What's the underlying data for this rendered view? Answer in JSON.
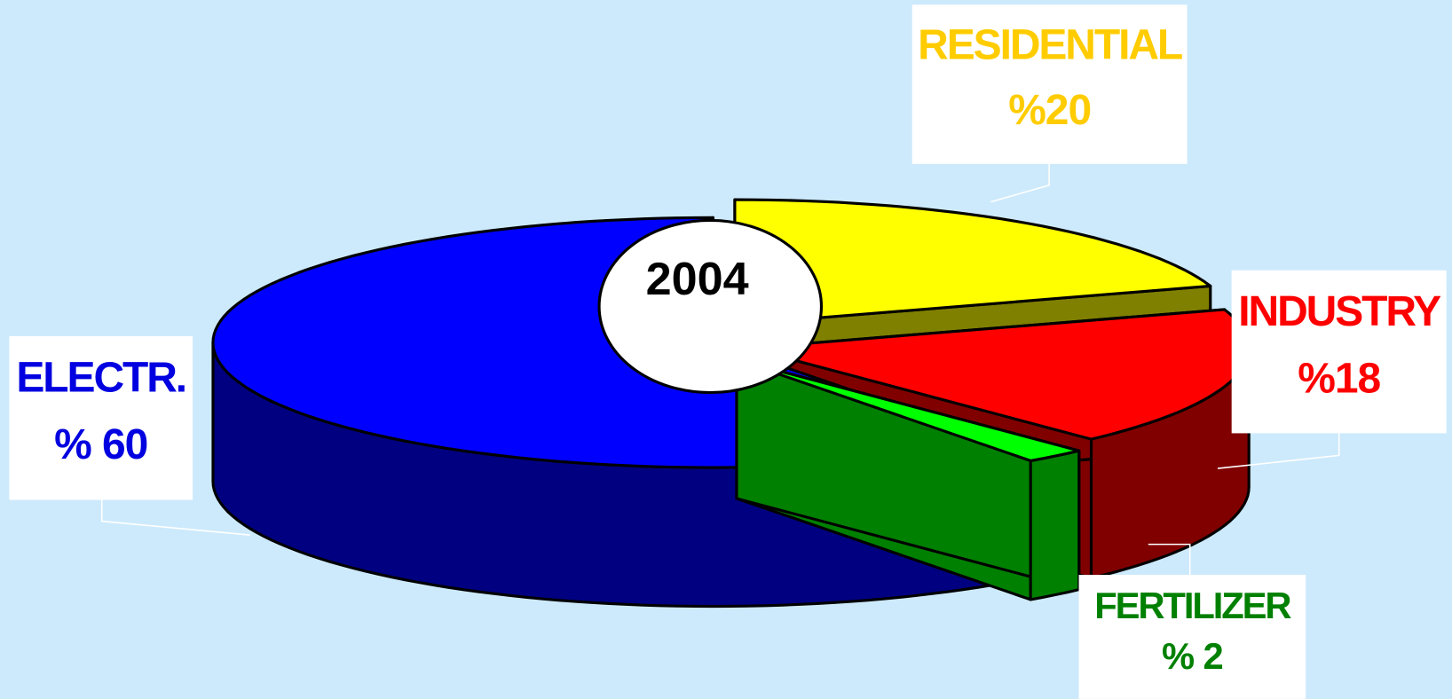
{
  "chart_data": {
    "type": "pie3d",
    "title": "2004",
    "categories": [
      "ELECTR.",
      "FERTILIZER",
      "INDUSTRY",
      "RESIDENTIAL"
    ],
    "values": [
      60,
      2,
      18,
      20
    ],
    "value_labels": [
      "% 60",
      "% 2",
      "%18",
      "%20"
    ],
    "colors": [
      "#0000ff",
      "#00ff00",
      "#ff0000",
      "#ffff00"
    ],
    "side_colors": [
      "#000080",
      "#008000",
      "#800000",
      "#808000"
    ],
    "label_colors": [
      "#0000e0",
      "#008000",
      "#ff0000",
      "#ffcc00"
    ]
  }
}
